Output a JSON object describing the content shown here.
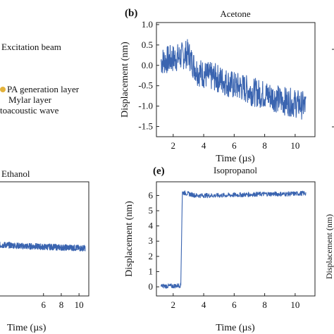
{
  "schematic_labels": {
    "excitation_beam": "Excitation beam",
    "pa_layer": "PA generation layer",
    "mylar_layer": "Mylar layer",
    "acoustic_wave": "toacoustic wave"
  },
  "colors": {
    "trace": "#3a64b0",
    "pa_layer_marker": "#e3b23c"
  },
  "chart_data": [
    {
      "panel": "(b)",
      "type": "line",
      "title": "Acetone",
      "xlabel": "Time (µs)",
      "ylabel": "Displacement (nm)",
      "xlim": [
        0.9,
        11.3
      ],
      "ylim": [
        -1.75,
        1.05
      ],
      "xticks": [
        2,
        4,
        6,
        8,
        10
      ],
      "yticks": [
        1.0,
        0.5,
        0.0,
        -0.5,
        -1.0,
        -1.5
      ],
      "ytick_labels": [
        "1.0",
        "0.5",
        "0.0",
        "-0.5",
        "-1.0",
        "-1.5"
      ],
      "grid": false,
      "series": [
        {
          "x": [
            1.2,
            1.8,
            2.4,
            3.0,
            3.2,
            3.6,
            4.2,
            4.8,
            5.4,
            6.0,
            6.6,
            7.2,
            7.8,
            8.4,
            9.0,
            9.6,
            10.2,
            10.7
          ],
          "y": [
            0.1,
            0.15,
            0.2,
            0.3,
            0.1,
            -0.15,
            -0.25,
            -0.3,
            -0.4,
            -0.5,
            -0.55,
            -0.65,
            -0.7,
            -0.75,
            -0.85,
            -0.9,
            -0.95,
            -1.0
          ],
          "noise": 0.35
        }
      ]
    },
    {
      "panel": "",
      "type": "line",
      "title": "Ethanol",
      "xlabel": "Time (µs)",
      "ylabel": "",
      "xlim": [
        1.1,
        11.1
      ],
      "ylim": [
        -1.0,
        8.2
      ],
      "xticks": [
        6,
        8,
        10
      ],
      "yticks": [],
      "ytick_labels": [],
      "grid": false,
      "series": [
        {
          "x": [
            1.0,
            2.0,
            3.0,
            4.0,
            5.0,
            6.0,
            7.0,
            8.0,
            9.0,
            10.0,
            10.7
          ],
          "y": [
            3.1,
            3.1,
            3.05,
            3.0,
            3.0,
            2.95,
            2.95,
            2.9,
            2.9,
            2.85,
            2.85
          ],
          "noise": 0.25
        }
      ]
    },
    {
      "panel": "(e)",
      "type": "line",
      "title": "Isopropanol",
      "xlabel": "Time (µs)",
      "ylabel": "Displacement (nm)",
      "xlim": [
        0.9,
        11.3
      ],
      "ylim": [
        -0.6,
        6.9
      ],
      "xticks": [
        2,
        4,
        6,
        8,
        10
      ],
      "yticks": [
        6,
        5,
        4,
        3,
        2,
        1,
        0
      ],
      "ytick_labels": [
        "6",
        "5",
        "4",
        "3",
        "2",
        "1",
        "0"
      ],
      "grid": false,
      "series": [
        {
          "x": [
            1.2,
            2.0,
            2.5,
            2.6,
            3.5,
            5.0,
            6.5,
            8.0,
            9.5,
            10.7
          ],
          "y": [
            0.05,
            0.05,
            0.1,
            6.2,
            6.0,
            6.0,
            6.05,
            6.1,
            6.1,
            6.15
          ],
          "noise": 0.15
        }
      ]
    }
  ]
}
